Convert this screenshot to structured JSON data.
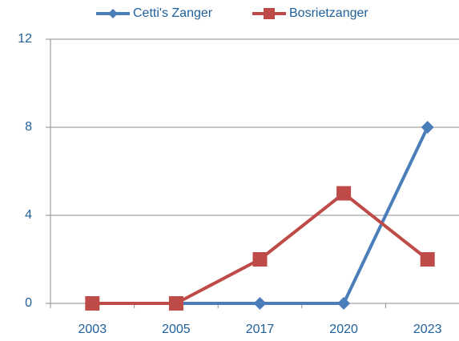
{
  "chart_data": {
    "type": "line",
    "categories": [
      "2003",
      "2005",
      "2017",
      "2020",
      "2023"
    ],
    "series": [
      {
        "name": "Cetti's Zanger",
        "color": "#4a7ebb",
        "marker": "diamond",
        "values": [
          0,
          0,
          0,
          0,
          8
        ]
      },
      {
        "name": "Bosrietzanger",
        "color": "#be4b48",
        "marker": "square",
        "values": [
          0,
          0,
          2,
          5,
          2
        ]
      }
    ],
    "ylim": [
      0,
      12
    ],
    "yticks": [
      0,
      4,
      8,
      12
    ],
    "grid": true,
    "legend": "top"
  }
}
